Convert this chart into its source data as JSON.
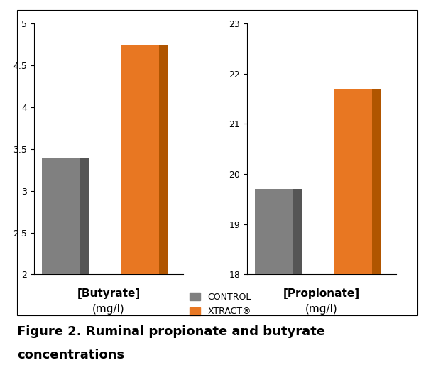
{
  "butyrate_control": 3.4,
  "butyrate_xtract": 4.75,
  "propionate_control": 19.7,
  "propionate_xtract": 21.7,
  "butyrate_ylim": [
    2,
    5
  ],
  "butyrate_yticks": [
    2,
    2.5,
    3,
    3.5,
    4,
    4.5,
    5
  ],
  "propionate_ylim": [
    18,
    23
  ],
  "propionate_yticks": [
    18,
    19,
    20,
    21,
    22,
    23
  ],
  "control_color": "#808080",
  "xtract_color": "#E87722",
  "control_shade": "#555555",
  "xtract_shade": "#B05500",
  "bar_width": 0.6,
  "background_color": "#ffffff",
  "butyrate_xlabel": "[Butyrate]",
  "butyrate_unit": "(mg/l)",
  "propionate_xlabel": "[Propionate]",
  "propionate_unit": "(mg/l)",
  "legend_control": "CONTROL",
  "legend_xtract": "XTRACT®",
  "caption_line1": "Figure 2. Ruminal propionate and butyrate",
  "caption_line2": "concentrations",
  "caption_fontsize": 13,
  "tick_fontsize": 9,
  "label_fontsize": 11
}
